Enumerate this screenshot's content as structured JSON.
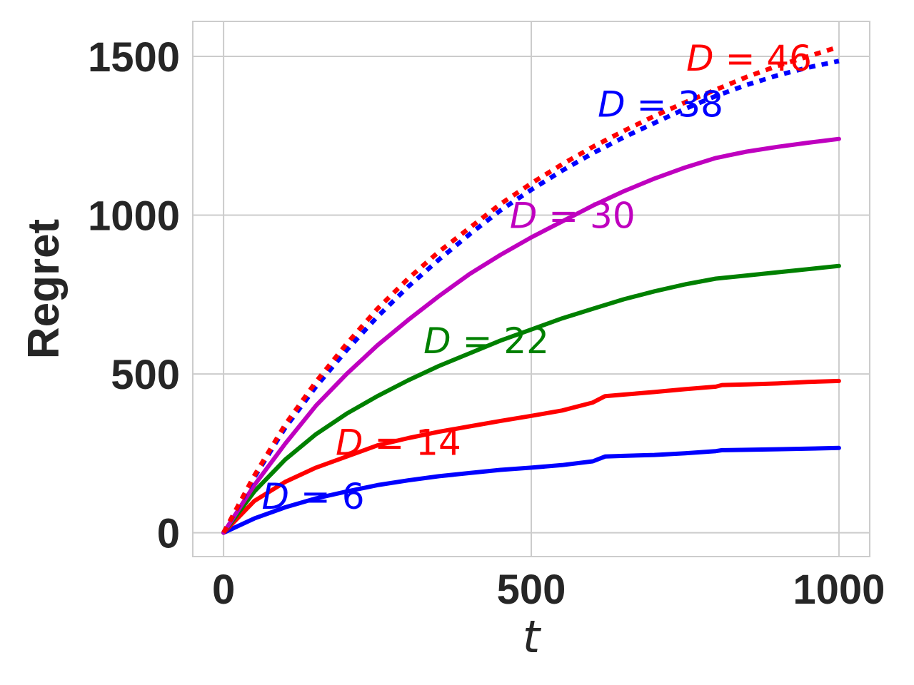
{
  "chart_data": {
    "type": "line",
    "title": "",
    "xlabel": "t",
    "ylabel": "Regret",
    "xlim": [
      -50,
      1050
    ],
    "ylim": [
      -75,
      1610
    ],
    "xticks": [
      0,
      500,
      1000
    ],
    "yticks": [
      0,
      500,
      1000,
      1500
    ],
    "grid": true,
    "legend": "none",
    "series": [
      {
        "name": "D = 6",
        "label_var": "D",
        "label_eq": " = 6",
        "color": "#0000ff",
        "style": "solid",
        "label_at": [
          62,
          75
        ],
        "x": [
          0,
          50,
          100,
          150,
          200,
          250,
          300,
          350,
          400,
          450,
          500,
          550,
          600,
          620,
          650,
          700,
          750,
          800,
          810,
          850,
          900,
          950,
          1000
        ],
        "y": [
          0,
          45,
          80,
          108,
          130,
          150,
          165,
          178,
          188,
          198,
          205,
          213,
          225,
          240,
          242,
          245,
          250,
          257,
          260,
          261,
          263,
          265,
          267
        ]
      },
      {
        "name": "D = 14",
        "label_var": "D",
        "label_eq": " = 14",
        "color": "#ff0000",
        "style": "solid",
        "label_at": [
          182,
          245
        ],
        "x": [
          0,
          50,
          100,
          150,
          200,
          250,
          300,
          350,
          400,
          450,
          500,
          550,
          600,
          620,
          650,
          700,
          750,
          800,
          810,
          850,
          900,
          950,
          1000
        ],
        "y": [
          0,
          100,
          160,
          205,
          240,
          275,
          298,
          318,
          335,
          352,
          368,
          385,
          410,
          430,
          435,
          443,
          452,
          460,
          465,
          467,
          470,
          475,
          478
        ]
      },
      {
        "name": "D = 22",
        "label_var": "D",
        "label_eq": " = 22",
        "color": "#008000",
        "style": "solid",
        "label_at": [
          325,
          565
        ],
        "x": [
          0,
          50,
          100,
          150,
          200,
          250,
          300,
          350,
          400,
          450,
          500,
          550,
          600,
          650,
          700,
          750,
          800,
          850,
          900,
          950,
          1000
        ],
        "y": [
          0,
          130,
          230,
          310,
          375,
          430,
          480,
          525,
          565,
          605,
          640,
          675,
          705,
          735,
          760,
          782,
          800,
          810,
          820,
          830,
          840
        ]
      },
      {
        "name": "D = 30",
        "label_var": "D",
        "label_eq": " = 30",
        "color": "#bf00bf",
        "style": "solid",
        "label_at": [
          465,
          960
        ],
        "x": [
          0,
          50,
          100,
          150,
          200,
          250,
          300,
          350,
          400,
          450,
          500,
          550,
          600,
          650,
          700,
          750,
          800,
          850,
          900,
          950,
          1000
        ],
        "y": [
          0,
          150,
          280,
          400,
          500,
          590,
          670,
          745,
          815,
          875,
          930,
          980,
          1030,
          1075,
          1115,
          1150,
          1180,
          1200,
          1215,
          1228,
          1240
        ]
      },
      {
        "name": "D = 38",
        "label_var": "D",
        "label_eq": " = 38",
        "color": "#0000ff",
        "style": "dotted",
        "label_at": [
          608,
          1310
        ],
        "x": [
          0,
          50,
          100,
          150,
          200,
          250,
          300,
          350,
          400,
          450,
          500,
          550,
          600,
          650,
          700,
          750,
          800,
          850,
          900,
          950,
          1000
        ],
        "y": [
          0,
          175,
          330,
          460,
          575,
          680,
          775,
          860,
          940,
          1015,
          1080,
          1140,
          1195,
          1245,
          1290,
          1335,
          1375,
          1410,
          1440,
          1465,
          1485
        ]
      },
      {
        "name": "D = 46",
        "label_var": "D",
        "label_eq": " = 46",
        "color": "#ff0000",
        "style": "dotted",
        "label_at": [
          752,
          1455
        ],
        "x": [
          0,
          50,
          100,
          150,
          200,
          250,
          300,
          350,
          400,
          450,
          500,
          550,
          600,
          650,
          700,
          750,
          800,
          850,
          900,
          950,
          1000
        ],
        "y": [
          0,
          180,
          340,
          475,
          595,
          705,
          800,
          885,
          960,
          1035,
          1100,
          1160,
          1215,
          1265,
          1312,
          1355,
          1395,
          1435,
          1470,
          1500,
          1530
        ]
      }
    ]
  }
}
